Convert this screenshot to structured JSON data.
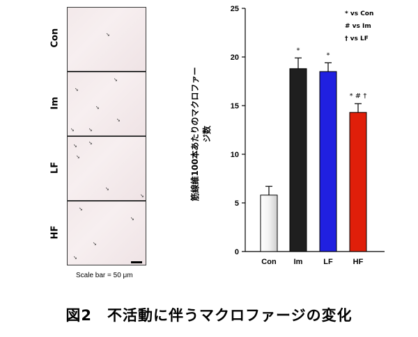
{
  "panels": [
    "Con",
    "Im",
    "LF",
    "HF"
  ],
  "scale_bar_text": "Scale bar = 50 μm",
  "caption": "図2　不活動に伴うマクロファージの変化",
  "chart_data": {
    "type": "bar",
    "categories": [
      "Con",
      "Im",
      "LF",
      "HF"
    ],
    "values": [
      5.8,
      18.8,
      18.5,
      14.3
    ],
    "errors": [
      0.9,
      1.1,
      0.9,
      0.9
    ],
    "colors": [
      "#ffffff",
      "#1f1f1f",
      "#2020e0",
      "#e01f0a"
    ],
    "annotations": [
      "",
      "*",
      "*",
      "* # †"
    ],
    "ylabel": "筋線維100本あたりのマクロファージ数",
    "ylim": [
      0,
      25
    ],
    "yticks": [
      0,
      5,
      10,
      15,
      20,
      25
    ],
    "legend": [
      "*  vs Con",
      "#  vs Im",
      "†  vs LF"
    ],
    "legend_position": "top-right"
  }
}
